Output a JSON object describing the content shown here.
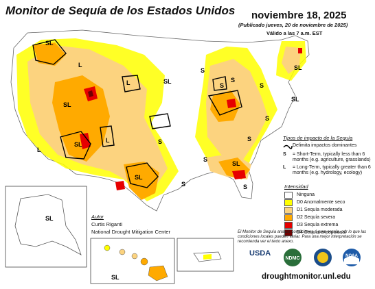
{
  "header": {
    "title": "Monitor de Sequía de los Estados Unidos",
    "date": "noviembre 18, 2025",
    "published": "(Publicado jueves, 20 de noviembre de 2025)",
    "valid": "Válido a las 7 a.m. EST"
  },
  "impact_legend": {
    "title": "Tipos de impacto de la Sequía",
    "boundary_label": "Delimita impactos dominantes",
    "short_key": "S",
    "short_text": "= Short-Term, typically less than 6 months (e.g. agriculture, grasslands)",
    "long_key": "L",
    "long_text": "= Long-Term, typically greater than 6 months (e.g. hydrology, ecology)"
  },
  "intensity_legend": {
    "title": "Intensidad",
    "levels": [
      {
        "label": "Ninguna",
        "color": "#ffffff"
      },
      {
        "label": "D0 Anomalmente seco",
        "color": "#ffff00"
      },
      {
        "label": "D1 Sequía moderada",
        "color": "#fcd37f"
      },
      {
        "label": "D2 Sequía severa",
        "color": "#ffaa00"
      },
      {
        "label": "D3 Sequía extrema",
        "color": "#e60000"
      },
      {
        "label": "D4 Sequía excepcional",
        "color": "#730000"
      }
    ]
  },
  "author": {
    "title": "Autor",
    "name": "Curtis Riganti",
    "org": "National Drought Mitigation Center"
  },
  "note": "El Monitor de Sequía analiza condiciones a gran escala, por lo que las condiciones locales pueden variar. Para una mejor interpretación se recomienda ver el texto anexo.",
  "url": "droughtmonitor.unl.edu",
  "logos": {
    "usda": "USDA",
    "ndmc": "NDMC",
    "doc": "department-of-commerce-seal",
    "noaa": "NOAA"
  },
  "map_labels": {
    "sl": "SL",
    "s": "S",
    "l": "L"
  }
}
